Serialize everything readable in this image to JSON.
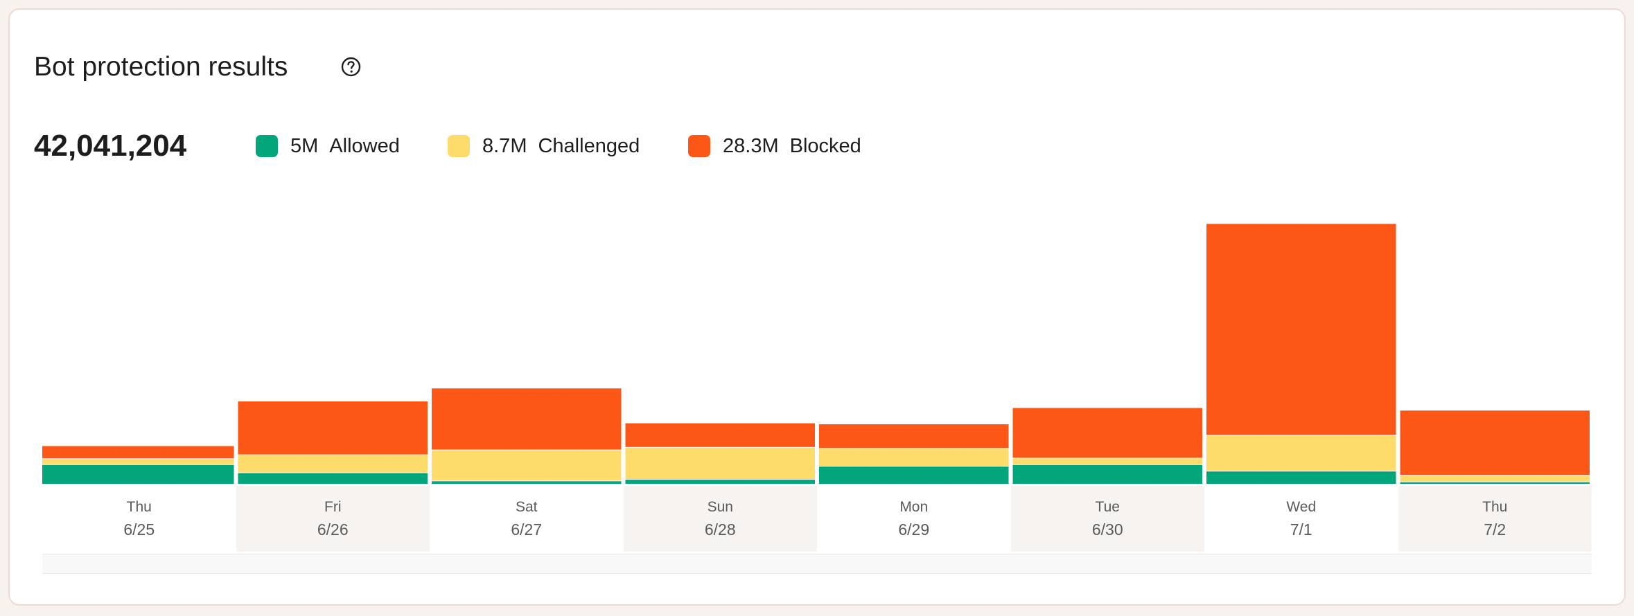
{
  "panel": {
    "title": "Bot protection results",
    "help_icon": "question-circle-icon",
    "total": "42,041,204"
  },
  "legend": [
    {
      "value": "5M",
      "label": "Allowed",
      "color": "#03a57b"
    },
    {
      "value": "8.7M",
      "label": "Challenged",
      "color": "#fddc6c"
    },
    {
      "value": "28.3M",
      "label": "Blocked",
      "color": "#fd5717"
    }
  ],
  "chart_data": {
    "type": "bar",
    "stacked": true,
    "categories": [
      {
        "weekday": "Thu",
        "date": "6/25"
      },
      {
        "weekday": "Fri",
        "date": "6/26"
      },
      {
        "weekday": "Sat",
        "date": "6/27"
      },
      {
        "weekday": "Sun",
        "date": "6/28"
      },
      {
        "weekday": "Mon",
        "date": "6/29"
      },
      {
        "weekday": "Tue",
        "date": "6/30"
      },
      {
        "weekday": "Wed",
        "date": "7/1"
      },
      {
        "weekday": "Thu",
        "date": "7/2"
      }
    ],
    "series": [
      {
        "name": "Allowed",
        "color": "#03a57b",
        "values": [
          0.6,
          0.35,
          0.1,
          0.15,
          0.55,
          0.6,
          0.4,
          0.07
        ]
      },
      {
        "name": "Challenged",
        "color": "#fddc6c",
        "values": [
          0.18,
          0.55,
          0.95,
          0.98,
          0.55,
          0.2,
          1.1,
          0.2
        ]
      },
      {
        "name": "Blocked",
        "color": "#fd5717",
        "values": [
          0.4,
          1.65,
          1.9,
          0.75,
          0.75,
          1.55,
          6.5,
          2.0
        ]
      }
    ],
    "ylim": [
      0,
      8.5
    ],
    "grid": false,
    "legend_position": "top-left"
  }
}
